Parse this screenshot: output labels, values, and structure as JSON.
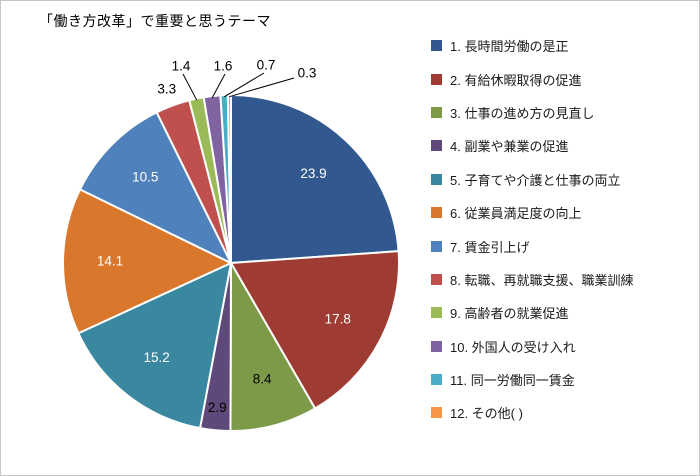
{
  "title": "「働き方改革」で重要と思うテーマ",
  "chart_data": {
    "type": "pie",
    "title": "「働き方改革」で重要と思うテーマ",
    "unit": "%",
    "legend_position": "right",
    "start_angle": "top",
    "direction": "clockwise",
    "slices": [
      {
        "legend_label": "1.  長時間労働の是正",
        "value": 23.9,
        "color": "#31588F",
        "label_color": "#FFFFFF",
        "placement": "inside"
      },
      {
        "legend_label": "2.  有給休暇取得の促進",
        "value": 17.8,
        "color": "#9E3B33",
        "label_color": "#FFFFFF",
        "placement": "inside"
      },
      {
        "legend_label": "3.  仕事の進め方の見直し",
        "value": 8.4,
        "color": "#7C9A47",
        "label_color": "#000000",
        "placement": "inside"
      },
      {
        "legend_label": "4.  副業や兼業の促進",
        "value": 2.9,
        "color": "#5F497A",
        "label_color": "#000000",
        "placement": "edge"
      },
      {
        "legend_label": "5.  子育てや介護と仕事の両立",
        "value": 15.2,
        "color": "#3A87A0",
        "label_color": "#FFFFFF",
        "placement": "inside"
      },
      {
        "legend_label": "6.  従業員満足度の向上",
        "value": 14.1,
        "color": "#D9782D",
        "label_color": "#FFFFFF",
        "placement": "inside"
      },
      {
        "legend_label": "7.  賃金引上げ",
        "value": 10.5,
        "color": "#4F81BD",
        "label_color": "#FFFFFF",
        "placement": "inside"
      },
      {
        "legend_label": "8.  転職、再就職支援、職業訓練",
        "value": 3.3,
        "color": "#C0504D",
        "label_color": "#000000",
        "placement": "outside"
      },
      {
        "legend_label": "9.  高齢者の就業促進",
        "value": 1.4,
        "color": "#9BBB59",
        "label_color": "#000000",
        "placement": "callout"
      },
      {
        "legend_label": "10.  外国人の受け入れ",
        "value": 1.6,
        "color": "#8064A2",
        "label_color": "#000000",
        "placement": "callout"
      },
      {
        "legend_label": "11.  同一労働同一賃金",
        "value": 0.7,
        "color": "#4BACC6",
        "label_color": "#000000",
        "placement": "callout"
      },
      {
        "legend_label": "12.  その他(                )",
        "value": 0.3,
        "color": "#F79646",
        "label_color": "#000000",
        "placement": "callout"
      }
    ]
  }
}
